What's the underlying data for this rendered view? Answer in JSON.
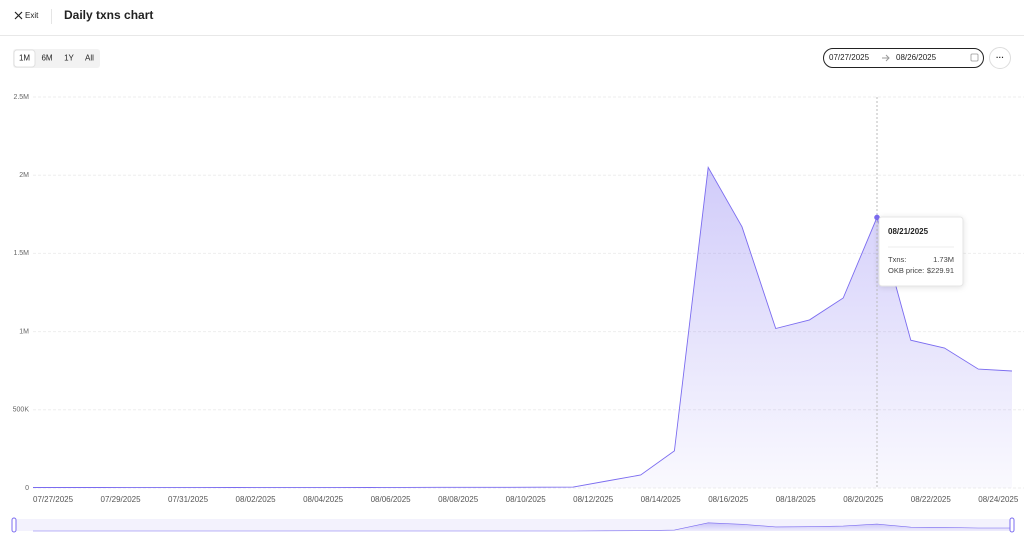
{
  "header": {
    "exit": "Exit",
    "title": "Daily txns chart"
  },
  "range_buttons": [
    "1M",
    "6M",
    "1Y",
    "All"
  ],
  "date_range": {
    "start": "07/27/2025",
    "end": "08/26/2025"
  },
  "tooltip": {
    "date": "08/21/2025",
    "rows": [
      [
        "Txns:",
        "1.73M"
      ],
      [
        "OKB price:",
        "$229.91"
      ]
    ]
  },
  "chart_data": {
    "type": "area",
    "categories": [
      "07/27/2025",
      null,
      "07/29/2025",
      null,
      "07/31/2025",
      null,
      "08/02/2025",
      null,
      "08/04/2025",
      null,
      "08/06/2025",
      null,
      "08/08/2025",
      null,
      "08/10/2025",
      null,
      "08/12/2025",
      null,
      "08/14/2025",
      null,
      "08/16/2025",
      null,
      "08/18/2025",
      null,
      "08/20/2025",
      null,
      "08/22/2025",
      null,
      "08/24/2025",
      null
    ],
    "values": [
      3200,
      3500,
      3400,
      4100,
      3900,
      3600,
      3300,
      3800,
      4000,
      3700,
      3500,
      3900,
      4200,
      4400,
      4600,
      5100,
      6000,
      45000,
      83000,
      237000,
      2050000,
      1670000,
      1020000,
      1075000,
      1215000,
      1730000,
      945000,
      895000,
      760000,
      748000
    ],
    "color": "#7b6cf0",
    "ylim": [
      0,
      2500000
    ],
    "yticks": [
      0,
      {
        "value": 500000,
        "label": "500K"
      },
      {
        "value": 1000000,
        "label": "1M"
      },
      {
        "value": 1500000,
        "label": "1.5M"
      },
      {
        "value": 2000000,
        "label": "2M"
      },
      {
        "value": 2500000,
        "label": "2.5M"
      }
    ],
    "grid": true
  }
}
